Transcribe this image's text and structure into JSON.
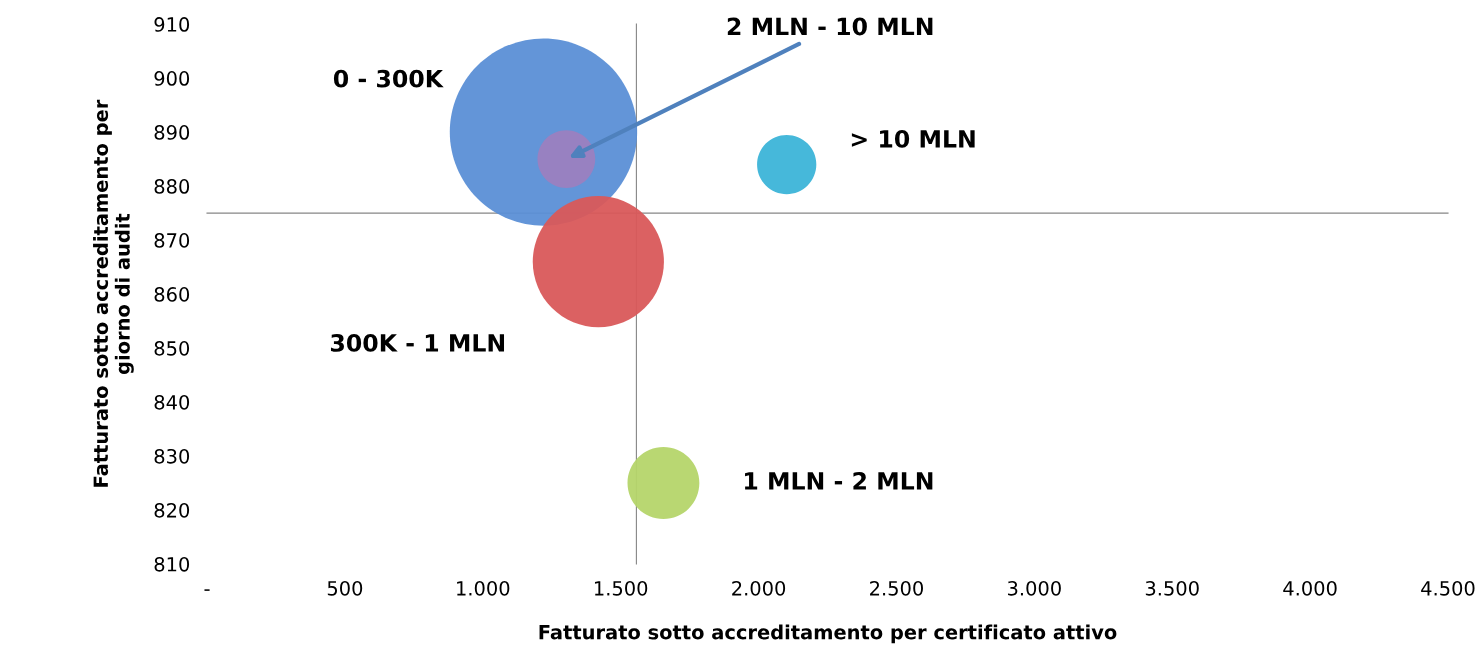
{
  "chart_data": {
    "type": "bubble",
    "xlabel": "Fatturato sotto accreditamento per certificato attivo",
    "ylabel": "Fatturato sotto accreditamento per\ngiorno di audit",
    "xlim": [
      0,
      4500
    ],
    "ylim": [
      810,
      910
    ],
    "xticks": [
      {
        "value": 0,
        "label": "-"
      },
      {
        "value": 500,
        "label": "500"
      },
      {
        "value": 1000,
        "label": "1.000"
      },
      {
        "value": 1500,
        "label": "1.500"
      },
      {
        "value": 2000,
        "label": "2.000"
      },
      {
        "value": 2500,
        "label": "2.500"
      },
      {
        "value": 3000,
        "label": "3.000"
      },
      {
        "value": 3500,
        "label": "3.500"
      },
      {
        "value": 4000,
        "label": "4.000"
      },
      {
        "value": 4500,
        "label": "4.500"
      }
    ],
    "yticks": [
      810,
      820,
      830,
      840,
      850,
      860,
      870,
      880,
      890,
      900,
      910
    ],
    "ref_lines": [
      {
        "axis": "x",
        "value": 1557,
        "color": "#868686"
      },
      {
        "axis": "y",
        "value": 875,
        "color": "#868686"
      }
    ],
    "grid": false,
    "legend": false,
    "series": [
      {
        "name": "0 - 300K",
        "color": "#5b8fd6",
        "x": [
          1220
        ],
        "values": [
          890
        ],
        "sizes": [
          1
        ]
      },
      {
        "name": "300K - 1 MLN",
        "color": "#d9585a",
        "x": [
          1419
        ],
        "values": [
          866
        ],
        "sizes": [
          0.49
        ]
      },
      {
        "name": "1 MLN - 2 MLN",
        "color": "#b5d56a",
        "x": [
          1655
        ],
        "values": [
          825
        ],
        "sizes": [
          0.147
        ]
      },
      {
        "name": "2 MLN - 10 MLN",
        "color": "#9b7fc0",
        "x": [
          1303
        ],
        "values": [
          885
        ],
        "sizes": [
          0.095
        ]
      },
      {
        "name": "> 10 MLN",
        "color": "#3cb4d8",
        "x": [
          2102
        ],
        "values": [
          884
        ],
        "sizes": [
          0.1
        ]
      }
    ]
  }
}
